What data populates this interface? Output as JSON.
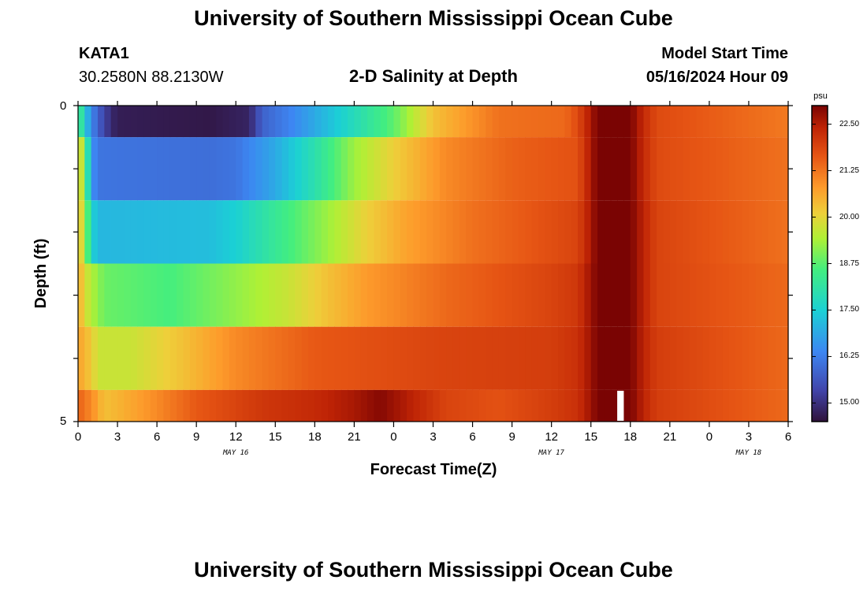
{
  "page": {
    "title": "University of Southern Mississippi Ocean Cube",
    "footer_title": "University of Southern Mississippi Ocean Cube"
  },
  "station": {
    "id": "KATA1",
    "coords": "30.2580N  88.2130W"
  },
  "model_start": {
    "label": "Model Start Time",
    "value": "05/16/2024 Hour 09"
  },
  "chart_data": {
    "type": "heatmap",
    "title": "2-D Salinity at Depth",
    "xlabel": "Forecast Time(Z)",
    "ylabel": "Depth (ft)",
    "y_ticks": [
      "0",
      "5"
    ],
    "ylim": [
      0,
      5
    ],
    "x_ticks": [
      "0",
      "3",
      "6",
      "9",
      "12",
      "15",
      "18",
      "21",
      "0",
      "3",
      "6",
      "9",
      "12",
      "15",
      "18",
      "21",
      "0",
      "3",
      "6"
    ],
    "x_hours": [
      0,
      54
    ],
    "date_labels": [
      {
        "text": "MAY 16",
        "hour": 12
      },
      {
        "text": "MAY 17",
        "hour": 36
      },
      {
        "text": "MAY 18",
        "hour": 51
      }
    ],
    "colorbar": {
      "unit": "psu",
      "min": 14.5,
      "max": 23.0,
      "ticks": [
        "22.50",
        "21.25",
        "20.00",
        "18.75",
        "17.50",
        "16.25",
        "15.00"
      ],
      "tick_values": [
        22.5,
        21.25,
        20.0,
        18.75,
        17.5,
        16.25,
        15.0
      ]
    },
    "layers": [
      {
        "depth_range": [
          0,
          0.5
        ],
        "profile": [
          [
            0,
            18.8
          ],
          [
            0.5,
            17.5
          ],
          [
            1,
            16.4
          ],
          [
            1.5,
            15.8
          ],
          [
            2.5,
            14.9
          ],
          [
            3,
            14.7
          ],
          [
            10,
            14.6
          ],
          [
            13,
            14.8
          ],
          [
            14,
            15.8
          ],
          [
            16,
            16.3
          ],
          [
            19,
            17.2
          ],
          [
            24,
            18.8
          ],
          [
            27,
            20.3
          ],
          [
            32,
            21.3
          ],
          [
            37,
            21.4
          ],
          [
            38,
            21.8
          ],
          [
            39,
            22.6
          ],
          [
            39.5,
            23.0
          ],
          [
            42,
            23.0
          ],
          [
            43,
            22.3
          ],
          [
            44,
            21.8
          ],
          [
            54,
            21.2
          ]
        ]
      },
      {
        "depth_range": [
          0.5,
          1.5
        ],
        "profile": [
          [
            0,
            20.2
          ],
          [
            0.5,
            19.2
          ],
          [
            1,
            16.6
          ],
          [
            1.5,
            16.1
          ],
          [
            10,
            16.0
          ],
          [
            12,
            16.1
          ],
          [
            15,
            16.9
          ],
          [
            18,
            18.0
          ],
          [
            21,
            19.3
          ],
          [
            24,
            20.1
          ],
          [
            28,
            21.0
          ],
          [
            33,
            21.5
          ],
          [
            38,
            21.7
          ],
          [
            39,
            22.6
          ],
          [
            39.5,
            23.0
          ],
          [
            42,
            23.0
          ],
          [
            43,
            22.3
          ],
          [
            44,
            21.8
          ],
          [
            54,
            21.3
          ]
        ]
      },
      {
        "depth_range": [
          1.5,
          2.5
        ],
        "profile": [
          [
            0,
            20.3
          ],
          [
            0.5,
            19.6
          ],
          [
            1,
            17.6
          ],
          [
            1.5,
            17.1
          ],
          [
            10,
            17.2
          ],
          [
            12,
            17.5
          ],
          [
            15,
            18.3
          ],
          [
            19,
            19.3
          ],
          [
            22,
            20.1
          ],
          [
            25,
            20.7
          ],
          [
            30,
            21.3
          ],
          [
            38,
            21.9
          ],
          [
            39,
            22.6
          ],
          [
            39.5,
            23.0
          ],
          [
            42,
            23.0
          ],
          [
            43,
            22.4
          ],
          [
            44,
            21.9
          ],
          [
            54,
            21.3
          ]
        ]
      },
      {
        "depth_range": [
          2.5,
          3.5
        ],
        "profile": [
          [
            0,
            20.6
          ],
          [
            0.8,
            19.6
          ],
          [
            2,
            18.9
          ],
          [
            7,
            18.6
          ],
          [
            12,
            19.2
          ],
          [
            16,
            19.7
          ],
          [
            19,
            20.3
          ],
          [
            22,
            20.8
          ],
          [
            28,
            21.4
          ],
          [
            36,
            21.9
          ],
          [
            38,
            22.1
          ],
          [
            39,
            22.7
          ],
          [
            39.5,
            23.0
          ],
          [
            42,
            23.0
          ],
          [
            43,
            22.4
          ],
          [
            44,
            21.9
          ],
          [
            54,
            21.4
          ]
        ]
      },
      {
        "depth_range": [
          3.5,
          4.5
        ],
        "profile": [
          [
            0,
            20.7
          ],
          [
            1,
            20.2
          ],
          [
            1.5,
            19.7
          ],
          [
            4,
            19.7
          ],
          [
            8,
            20.3
          ],
          [
            12,
            21.0
          ],
          [
            18,
            21.6
          ],
          [
            28,
            21.9
          ],
          [
            36,
            22.0
          ],
          [
            38,
            22.2
          ],
          [
            39,
            22.7
          ],
          [
            39.5,
            23.0
          ],
          [
            42,
            23.0
          ],
          [
            43,
            22.4
          ],
          [
            44,
            22.0
          ],
          [
            54,
            21.4
          ]
        ]
      },
      {
        "depth_range": [
          4.5,
          5.0
        ],
        "profile": [
          [
            0,
            21.5
          ],
          [
            1,
            21.0
          ],
          [
            2,
            20.3
          ],
          [
            5,
            20.8
          ],
          [
            9,
            21.6
          ],
          [
            14,
            22.1
          ],
          [
            18,
            22.3
          ],
          [
            21,
            22.6
          ],
          [
            23,
            22.9
          ],
          [
            25,
            22.5
          ],
          [
            28,
            21.9
          ],
          [
            32,
            21.7
          ],
          [
            36,
            22.0
          ],
          [
            38,
            22.2
          ],
          [
            39,
            22.7
          ],
          [
            39.5,
            23.0
          ],
          [
            42,
            23.0
          ],
          [
            43,
            22.4
          ],
          [
            44,
            22.0
          ],
          [
            54,
            21.4
          ]
        ]
      }
    ],
    "missing_cells": [
      {
        "hour": 41,
        "depth_range": [
          4.5,
          5.0
        ]
      }
    ]
  }
}
